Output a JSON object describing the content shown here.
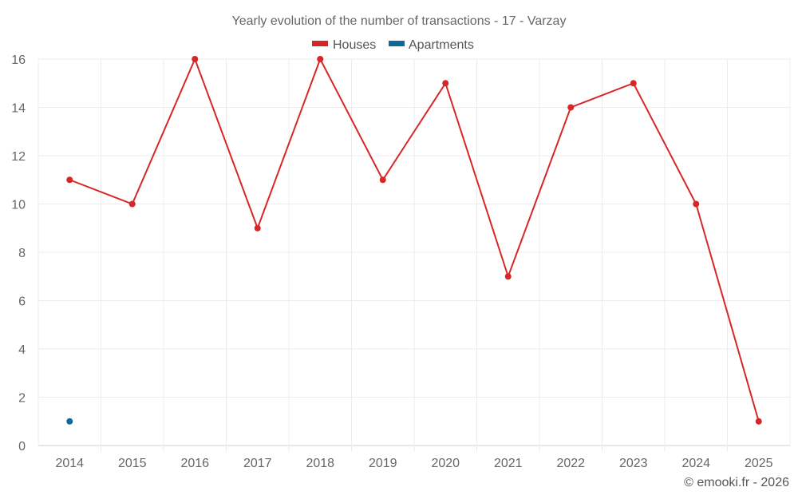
{
  "chart_data": {
    "type": "line",
    "title": "Yearly evolution of the number of transactions - 17 - Varzay",
    "categories": [
      "2014",
      "2015",
      "2016",
      "2017",
      "2018",
      "2019",
      "2020",
      "2021",
      "2022",
      "2023",
      "2024",
      "2025"
    ],
    "series": [
      {
        "name": "Houses",
        "color": "#d62728",
        "values": [
          11,
          10,
          16,
          9,
          16,
          11,
          15,
          7,
          14,
          15,
          10,
          1
        ]
      },
      {
        "name": "Apartments",
        "color": "#0f6a99",
        "values": [
          1,
          null,
          null,
          null,
          null,
          null,
          null,
          null,
          null,
          null,
          null,
          null
        ]
      }
    ],
    "ylim": [
      0,
      16
    ],
    "yticks": [
      0,
      2,
      4,
      6,
      8,
      10,
      12,
      14,
      16
    ],
    "xlabel": "",
    "ylabel": "",
    "grid": true,
    "legend_position": "top-center"
  },
  "credit": "© emooki.fr - 2026"
}
